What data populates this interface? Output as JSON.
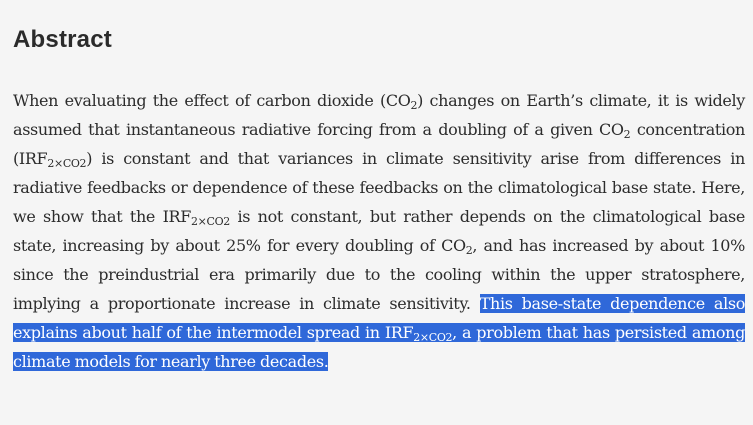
{
  "section": {
    "title": "Abstract"
  },
  "abstract": {
    "p01": "When evaluating the effect of carbon dioxide (CO",
    "s01": "2",
    "p02": ") changes on Earth’s climate, it is widely assumed that instantaneous radiative forcing from a doubling of a given CO",
    "s02": "2",
    "p03": " concentration (IRF",
    "s03": "2×CO2",
    "p04": ") is constant and that variances in climate sensitivity arise from differences in radiative feedbacks or dependence of these feedbacks on the climatological base state. Here, we show that the IRF",
    "s04": "2×CO2",
    "p05": " is not constant, but rather depends on the climatological base state, increasing by about 25% for every doubling of CO",
    "s05": "2",
    "p06": ", and has increased by about 10% since the preindustrial era pri­marily due to the cooling within the upper stratosphere, implying a proportionate increase in climate sensitivity. ",
    "h01": "This base-state dependence also explains about half of the intermodel spread in IRF",
    "hs01": "2×CO2",
    "h02": ", a problem that has persisted among climate models for nearly three decades."
  }
}
